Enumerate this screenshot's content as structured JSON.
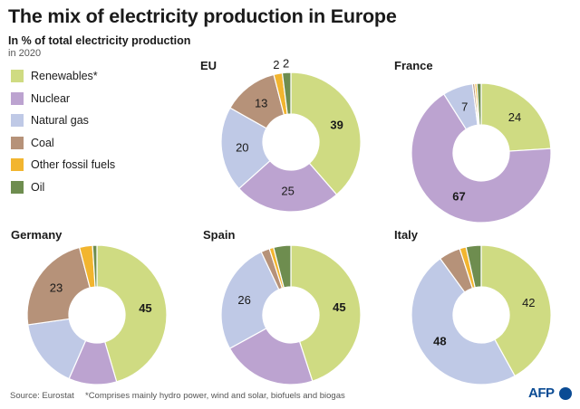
{
  "header": {
    "title": "The mix of electricity production in Europe",
    "subtitle": "In % of total electricity production",
    "year": "in 2020"
  },
  "legend": [
    {
      "label": "Renewables*",
      "color": "#cfdb82"
    },
    {
      "label": "Nuclear",
      "color": "#bca3d0"
    },
    {
      "label": "Natural gas",
      "color": "#bfc9e6"
    },
    {
      "label": "Coal",
      "color": "#b69279"
    },
    {
      "label": "Other fossil fuels",
      "color": "#f2b52f"
    },
    {
      "label": "Oil",
      "color": "#6e8d4f"
    }
  ],
  "chart_data": [
    {
      "type": "donut",
      "title": "EU",
      "slices": [
        {
          "label": "Renewables*",
          "value": 39,
          "shown": "39",
          "bold": true
        },
        {
          "label": "Nuclear",
          "value": 25,
          "shown": "25"
        },
        {
          "label": "Natural gas",
          "value": 20,
          "shown": "20"
        },
        {
          "label": "Coal",
          "value": 13,
          "shown": "13"
        },
        {
          "label": "Other fossil fuels",
          "value": 2,
          "shown": "2"
        },
        {
          "label": "Oil",
          "value": 2,
          "shown": "2"
        }
      ]
    },
    {
      "type": "donut",
      "title": "France",
      "slices": [
        {
          "label": "Renewables*",
          "value": 24,
          "shown": "24"
        },
        {
          "label": "Nuclear",
          "value": 67,
          "shown": "67",
          "bold": true
        },
        {
          "label": "Natural gas",
          "value": 7,
          "shown": "7"
        },
        {
          "label": "Coal",
          "value": 0.5,
          "shown": ""
        },
        {
          "label": "Other fossil fuels",
          "value": 0.5,
          "shown": ""
        },
        {
          "label": "Oil",
          "value": 1,
          "shown": ""
        }
      ]
    },
    {
      "type": "donut",
      "title": "Germany",
      "slices": [
        {
          "label": "Renewables*",
          "value": 45,
          "shown": "45",
          "bold": true
        },
        {
          "label": "Nuclear",
          "value": 11,
          "shown": ""
        },
        {
          "label": "Natural gas",
          "value": 16,
          "shown": ""
        },
        {
          "label": "Coal",
          "value": 23,
          "shown": "23"
        },
        {
          "label": "Other fossil fuels",
          "value": 3,
          "shown": ""
        },
        {
          "label": "Oil",
          "value": 1,
          "shown": ""
        }
      ]
    },
    {
      "type": "donut",
      "title": "Spain",
      "slices": [
        {
          "label": "Renewables*",
          "value": 45,
          "shown": "45",
          "bold": true
        },
        {
          "label": "Nuclear",
          "value": 22,
          "shown": ""
        },
        {
          "label": "Natural gas",
          "value": 26,
          "shown": "26"
        },
        {
          "label": "Coal",
          "value": 2,
          "shown": ""
        },
        {
          "label": "Other fossil fuels",
          "value": 1,
          "shown": ""
        },
        {
          "label": "Oil",
          "value": 4,
          "shown": ""
        }
      ]
    },
    {
      "type": "donut",
      "title": "Italy",
      "slices": [
        {
          "label": "Renewables*",
          "value": 42,
          "shown": "42"
        },
        {
          "label": "Natural gas",
          "value": 48,
          "shown": "48",
          "bold": true
        },
        {
          "label": "Coal",
          "value": 5,
          "shown": ""
        },
        {
          "label": "Other fossil fuels",
          "value": 1.5,
          "shown": ""
        },
        {
          "label": "Oil",
          "value": 3.5,
          "shown": ""
        }
      ]
    }
  ],
  "footer": {
    "source": "Source: Eurostat",
    "note": "*Comprises mainly hydro power, wind and solar, biofuels and biogas",
    "agency": "AFP"
  }
}
